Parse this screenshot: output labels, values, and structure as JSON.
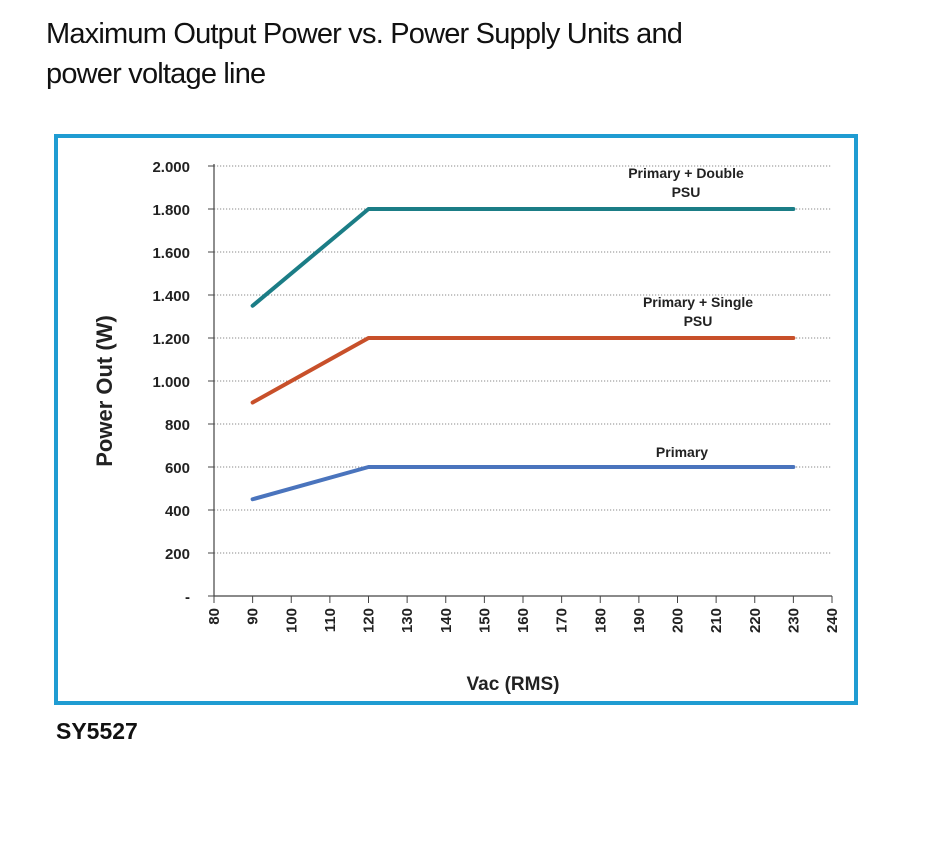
{
  "title_lines": [
    "Maximum Output Power vs. Power Supply Units and",
    "power voltage line"
  ],
  "caption": "SY5527",
  "chart_data": {
    "type": "line",
    "xlabel": "Vac (RMS)",
    "ylabel": "Power Out (W)",
    "xlim": [
      80,
      240
    ],
    "ylim": [
      0,
      2000
    ],
    "x_ticks": [
      80,
      90,
      100,
      110,
      120,
      130,
      140,
      150,
      160,
      170,
      180,
      190,
      200,
      210,
      220,
      230,
      240
    ],
    "y_ticks": [
      {
        "value": 0,
        "label": "-"
      },
      {
        "value": 200,
        "label": "200"
      },
      {
        "value": 400,
        "label": "400"
      },
      {
        "value": 600,
        "label": "600"
      },
      {
        "value": 800,
        "label": "800"
      },
      {
        "value": 1000,
        "label": "1.000"
      },
      {
        "value": 1200,
        "label": "1.200"
      },
      {
        "value": 1400,
        "label": "1.400"
      },
      {
        "value": 1600,
        "label": "1.600"
      },
      {
        "value": 1800,
        "label": "1.800"
      },
      {
        "value": 2000,
        "label": "2.000"
      }
    ],
    "grid": "horizontal dotted",
    "series": [
      {
        "label_lines": [
          "Primary + Double",
          "PSU"
        ],
        "color": "#1b7d86",
        "x": [
          90,
          120,
          230
        ],
        "y": [
          1350,
          1800,
          1800
        ]
      },
      {
        "label_lines": [
          "Primary + Single",
          "PSU"
        ],
        "color": "#c8502a",
        "x": [
          90,
          120,
          230
        ],
        "y": [
          900,
          1200,
          1200
        ]
      },
      {
        "label_lines": [
          "Primary"
        ],
        "color": "#4a74bd",
        "x": [
          90,
          120,
          230
        ],
        "y": [
          450,
          600,
          600
        ]
      }
    ]
  }
}
